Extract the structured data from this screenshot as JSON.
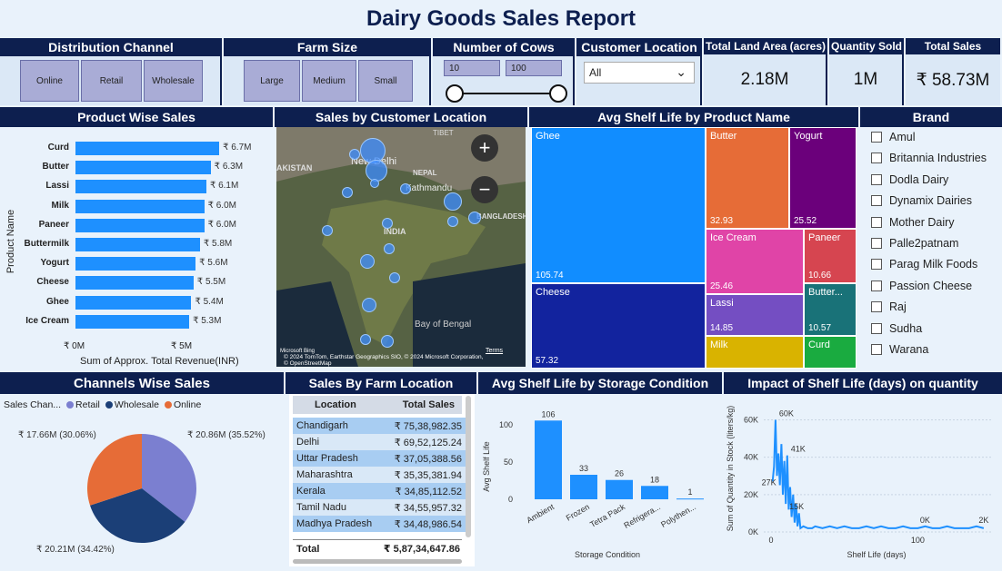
{
  "report_title": "Dairy Goods Sales Report",
  "distribution": {
    "header": "Distribution Channel",
    "options": [
      "Online",
      "Retail",
      "Wholesale"
    ]
  },
  "farm_size": {
    "header": "Farm Size",
    "options": [
      "Large",
      "Medium",
      "Small"
    ]
  },
  "cows": {
    "header": "Number of Cows",
    "min": "10",
    "max": "100"
  },
  "customer_location": {
    "header": "Customer Location",
    "value": "All"
  },
  "kpis": [
    {
      "label": "Total Land Area (acres)",
      "value": "2.18M"
    },
    {
      "label": "Quantity Sold",
      "value": "1M"
    },
    {
      "label": "Total Sales",
      "value": "₹ 58.73M"
    }
  ],
  "product_sales": {
    "header": "Product Wise Sales",
    "ylabel": "Product Name",
    "xlabel": "Sum of Approx. Total Revenue(INR)",
    "ticks": [
      "₹ 0M",
      "₹ 5M"
    ],
    "items": [
      {
        "name": "Curd",
        "value": 6.7,
        "label": "₹ 6.7M"
      },
      {
        "name": "Butter",
        "value": 6.3,
        "label": "₹ 6.3M"
      },
      {
        "name": "Lassi",
        "value": 6.1,
        "label": "₹ 6.1M"
      },
      {
        "name": "Milk",
        "value": 6.0,
        "label": "₹ 6.0M"
      },
      {
        "name": "Paneer",
        "value": 6.0,
        "label": "₹ 6.0M"
      },
      {
        "name": "Buttermilk",
        "value": 5.8,
        "label": "₹ 5.8M"
      },
      {
        "name": "Yogurt",
        "value": 5.6,
        "label": "₹ 5.6M"
      },
      {
        "name": "Cheese",
        "value": 5.5,
        "label": "₹ 5.5M"
      },
      {
        "name": "Ghee",
        "value": 5.4,
        "label": "₹ 5.4M"
      },
      {
        "name": "Ice Cream",
        "value": 5.3,
        "label": "₹ 5.3M"
      }
    ]
  },
  "map": {
    "header": "Sales by Customer Location",
    "labels": {
      "pakistan": "AKISTAN",
      "newdelhi": "New Delhi",
      "nepal": "NEPAL",
      "kathmandu": "Kathmandu",
      "india": "INDIA",
      "bangladesh": "BANGLADESH",
      "tibet": "TIBET",
      "bay": "Bay of Bengal"
    },
    "attribution": "© 2024 TomTom, Earthstar Geographics SIO, © 2024 Microsoft Corporation, © OpenStreetMap",
    "terms": "Terms",
    "microsoft": "Microsoft Bing",
    "zoom_in": "+",
    "zoom_out": "−"
  },
  "shelf_treemap": {
    "header": "Avg Shelf Life by Product Name",
    "cells": [
      {
        "name": "Ghee",
        "value": "105.74",
        "color": "#118dff"
      },
      {
        "name": "Cheese",
        "value": "57.32",
        "color": "#12239e"
      },
      {
        "name": "Butter",
        "value": "32.93",
        "color": "#e66c37"
      },
      {
        "name": "Yogurt",
        "value": "25.52",
        "color": "#6b007b"
      },
      {
        "name": "Ice Cream",
        "value": "25.46",
        "color": "#e044a7"
      },
      {
        "name": "Paneer",
        "value": "10.66",
        "color": "#d64550"
      },
      {
        "name": "Lassi",
        "value": "14.85",
        "color": "#744ec2"
      },
      {
        "name": "Butter...",
        "value": "10.57",
        "color": "#197278"
      },
      {
        "name": "Milk",
        "value": "",
        "color": "#d9b300"
      },
      {
        "name": "Curd",
        "value": "",
        "color": "#1aab40"
      }
    ]
  },
  "brand": {
    "header": "Brand",
    "items": [
      "Amul",
      "Britannia Industries",
      "Dodla Dairy",
      "Dynamix Dairies",
      "Mother Dairy",
      "Palle2patnam",
      "Parag Milk Foods",
      "Passion Cheese",
      "Raj",
      "Sudha",
      "Warana"
    ]
  },
  "channels": {
    "header": "Channels Wise Sales",
    "legend_title": "Sales Chan...",
    "legend": [
      {
        "name": "Retail",
        "color": "#7b7fd0"
      },
      {
        "name": "Wholesale",
        "color": "#1b3f77"
      },
      {
        "name": "Online",
        "color": "#e66c37"
      }
    ],
    "slices": [
      {
        "name": "Retail",
        "value": 35.52,
        "label": "₹ 20.86M (35.52%)",
        "color": "#7b7fd0"
      },
      {
        "name": "Wholesale",
        "value": 34.42,
        "label": "₹ 20.21M (34.42%)",
        "color": "#1b3f77"
      },
      {
        "name": "Online",
        "value": 30.06,
        "label": "₹ 17.66M (30.06%)",
        "color": "#e66c37"
      }
    ]
  },
  "farm_location": {
    "header": "Sales By Farm Location",
    "col_location": "Location",
    "col_sales": "Total Sales",
    "rows": [
      {
        "loc": "Chandigarh",
        "sales": "₹ 75,38,982.35"
      },
      {
        "loc": "Delhi",
        "sales": "₹ 69,52,125.24"
      },
      {
        "loc": "Uttar Pradesh",
        "sales": "₹ 37,05,388.56"
      },
      {
        "loc": "Maharashtra",
        "sales": "₹ 35,35,381.94"
      },
      {
        "loc": "Kerala",
        "sales": "₹ 34,85,112.52"
      },
      {
        "loc": "Tamil Nadu",
        "sales": "₹ 34,55,957.32"
      },
      {
        "loc": "Madhya Pradesh",
        "sales": "₹ 34,48,986.54"
      }
    ],
    "total_label": "Total",
    "total_value": "₹ 5,87,34,647.86"
  },
  "storage_chart": {
    "header": "Avg Shelf Life by Storage Condition",
    "type": "bar",
    "ylabel": "Avg Shelf Life",
    "xlabel": "Storage Condition",
    "yticks": [
      "0",
      "50",
      "100"
    ],
    "categories": [
      "Ambient",
      "Frozen",
      "Tetra Pack",
      "Refrigera...",
      "Polythen..."
    ],
    "values": [
      106,
      33,
      26,
      18,
      1
    ],
    "labels": [
      "106",
      "33",
      "26",
      "18",
      "1"
    ]
  },
  "chart_data": {
    "type": "line",
    "title": "Impact of Shelf Life (days) on quantity",
    "xlabel": "Shelf Life (days)",
    "ylabel": "Sum of Quantity in Stock (liters/kg)",
    "yticks": [
      "0K",
      "20K",
      "40K",
      "60K"
    ],
    "xticks": [
      "0",
      "100"
    ],
    "ylim": [
      0,
      68
    ],
    "xlim": [
      -5,
      150
    ],
    "annotations": [
      "60K",
      "41K",
      "27K",
      "15K",
      "0K",
      "2K"
    ],
    "x": [
      1,
      2,
      3,
      4,
      5,
      6,
      7,
      8,
      9,
      10,
      11,
      12,
      13,
      14,
      15,
      16,
      17,
      18,
      19,
      20,
      22,
      25,
      28,
      30,
      35,
      40,
      45,
      50,
      55,
      60,
      65,
      70,
      75,
      80,
      85,
      90,
      95,
      100,
      105,
      110,
      115,
      120,
      125,
      130,
      135,
      140,
      145
    ],
    "y": [
      27,
      35,
      60,
      30,
      42,
      25,
      47,
      20,
      38,
      15,
      41,
      12,
      24,
      8,
      20,
      5,
      15,
      3,
      10,
      2,
      3,
      2,
      2,
      3,
      2,
      3,
      2,
      3,
      2,
      2,
      3,
      2,
      3,
      2,
      2,
      3,
      2,
      2,
      3,
      2,
      2,
      3,
      2,
      2,
      2,
      3,
      2
    ]
  }
}
